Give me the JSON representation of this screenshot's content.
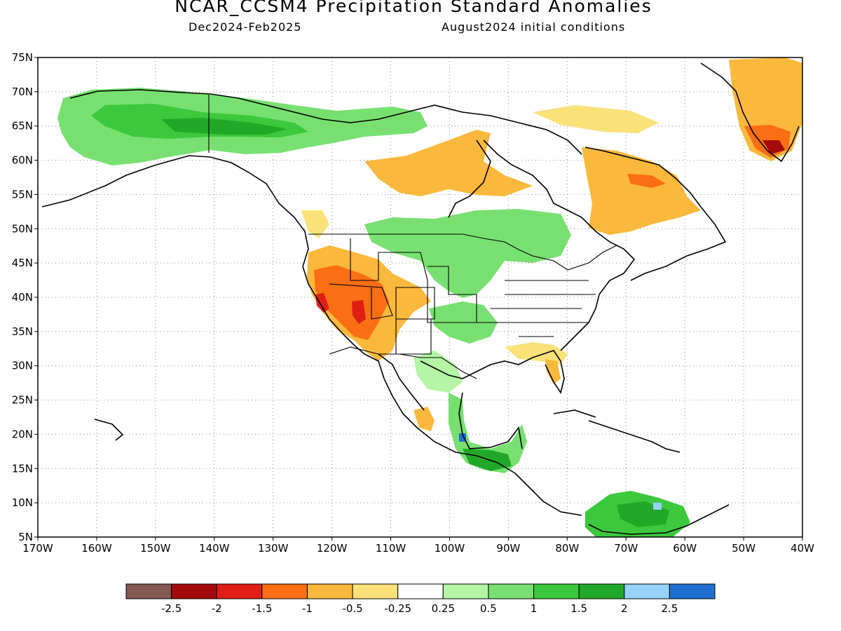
{
  "header": {
    "title": "NCAR_CCSM4 Precipitation Standard Anomalies",
    "period": "Dec2024-Feb2025",
    "init": "August2024 initial conditions"
  },
  "map": {
    "lat_labels": [
      "75N",
      "70N",
      "65N",
      "60N",
      "55N",
      "50N",
      "45N",
      "40N",
      "35N",
      "30N",
      "25N",
      "20N",
      "15N",
      "10N",
      "5N"
    ],
    "lon_labels": [
      "170W",
      "160W",
      "150W",
      "140W",
      "130W",
      "120W",
      "110W",
      "100W",
      "90W",
      "80W",
      "70W",
      "60W",
      "50W",
      "40W"
    ],
    "colors": {
      "green_light": "#b4f5a6",
      "green": "#78e070",
      "green_mid": "#3cc83c",
      "green_dark": "#22a828",
      "blue_light": "#96d2fa",
      "blue": "#1e6ed2",
      "yellow": "#fae178",
      "orange_light": "#fab83c",
      "orange": "#fa6e14",
      "red": "#e11e14",
      "dark_red": "#a50a0a",
      "brown": "#825a50"
    }
  },
  "legend": {
    "colors": [
      "#825a50",
      "#a50a0a",
      "#e11e14",
      "#fa6e14",
      "#fab83c",
      "#fae178",
      "#ffffff",
      "#b4f5a6",
      "#78e070",
      "#3cc83c",
      "#22a828",
      "#96d2fa",
      "#1e6ed2"
    ],
    "labels": [
      "-2.5",
      "-2",
      "-1.5",
      "-1",
      "-0.5",
      "-0.25",
      "0.25",
      "0.5",
      "1",
      "1.5",
      "2",
      "2.5"
    ]
  }
}
